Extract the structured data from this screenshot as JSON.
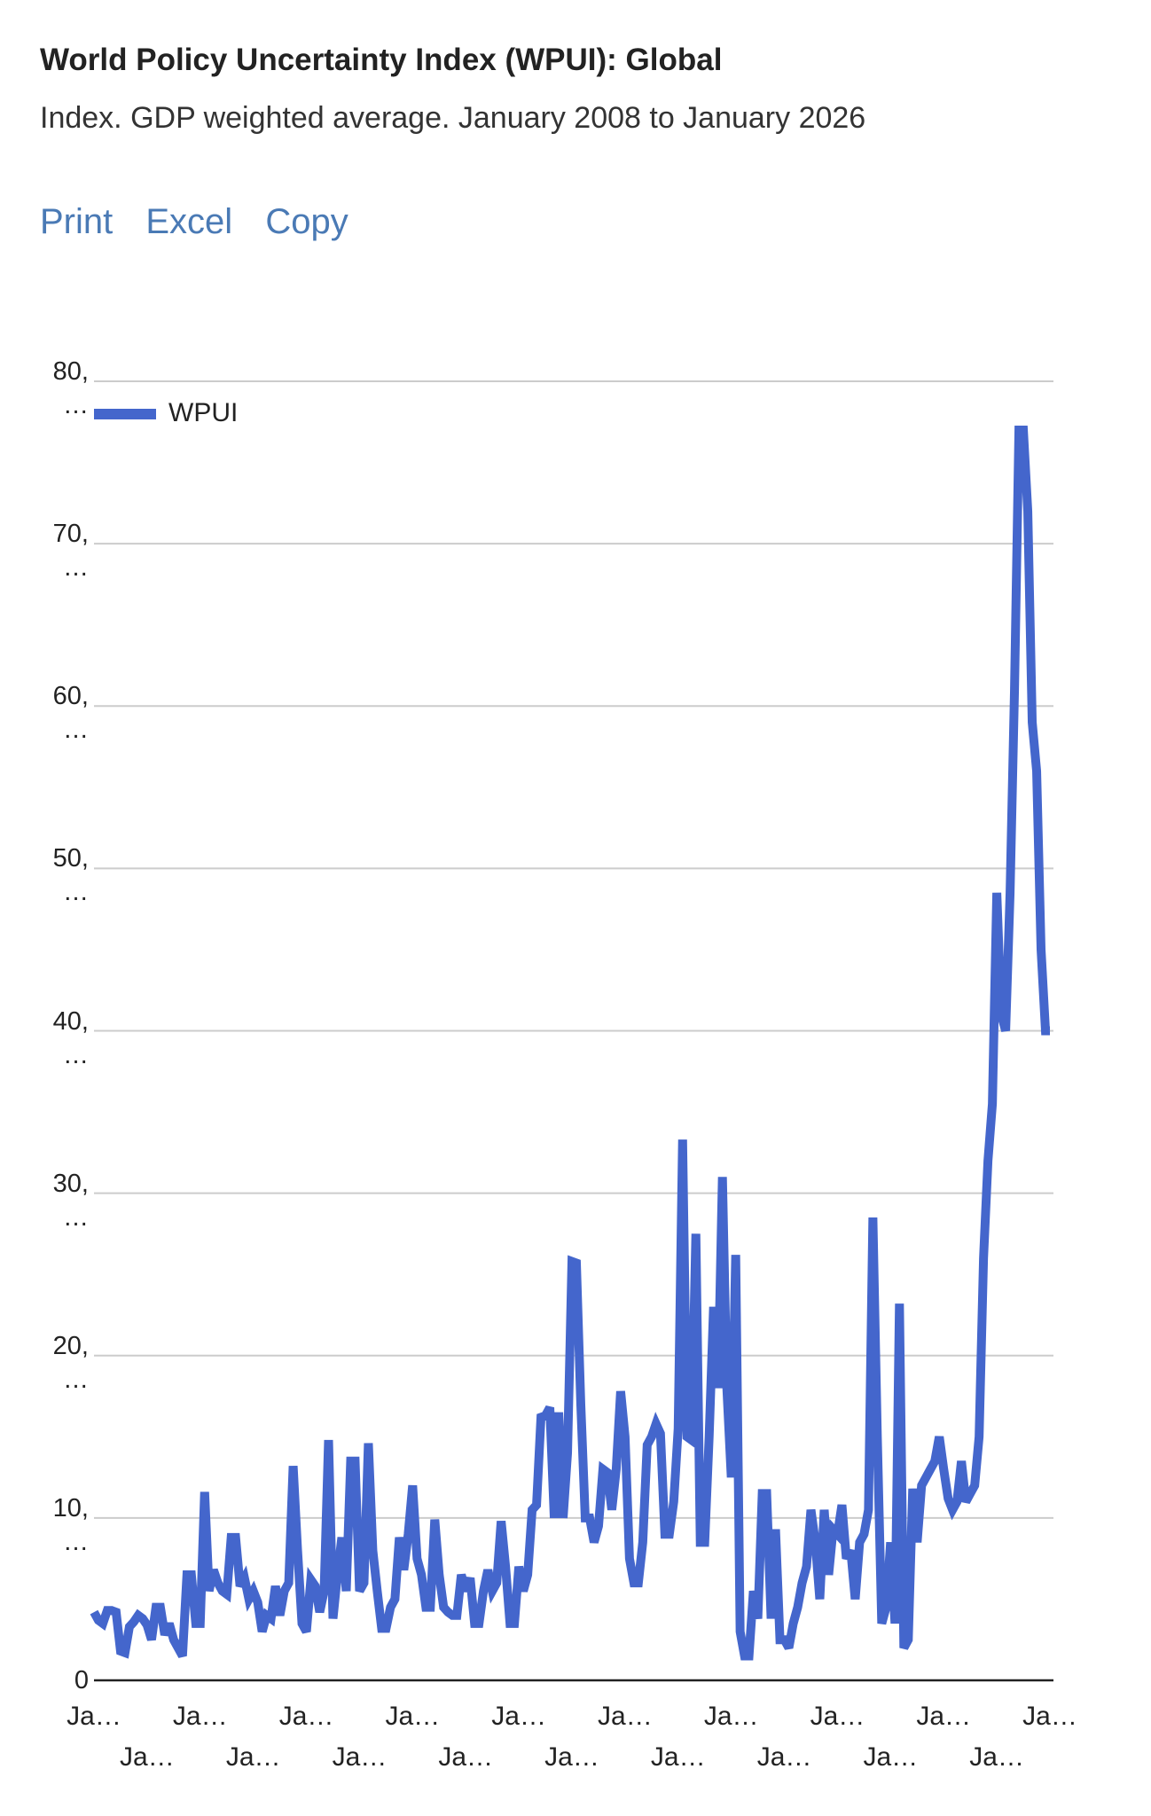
{
  "toolbar": [
    "Print",
    "Excel",
    "Copy"
  ],
  "chart_data": {
    "type": "line",
    "title": "World Policy Uncertainty Index (WPUI): Global",
    "subtitle": "Index. GDP weighted average. January 2008 to January 2026",
    "categories": [
      "Ja…",
      null,
      null,
      null,
      null,
      null,
      null,
      null,
      null,
      null,
      null,
      null,
      "Ja…",
      null,
      null,
      null,
      null,
      null,
      null,
      null,
      null,
      null,
      null,
      null,
      "Ja…",
      null,
      null,
      null,
      null,
      null,
      null,
      null,
      null,
      null,
      null,
      null,
      "Ja…",
      null,
      null,
      null,
      null,
      null,
      null,
      null,
      null,
      null,
      null,
      null,
      "Ja…",
      null,
      null,
      null,
      null,
      null,
      null,
      null,
      null,
      null,
      null,
      null,
      "Ja…",
      null,
      null,
      null,
      null,
      null,
      null,
      null,
      null,
      null,
      null,
      null,
      "Ja…",
      null,
      null,
      null,
      null,
      null,
      null,
      null,
      null,
      null,
      null,
      null,
      "Ja…",
      null,
      null,
      null,
      null,
      null,
      null,
      null,
      null,
      null,
      null,
      null,
      "Ja…",
      null,
      null,
      null,
      null,
      null,
      null,
      null,
      null,
      null,
      null,
      null,
      "Ja…",
      null,
      null,
      null,
      null,
      null,
      null,
      null,
      null,
      null,
      null,
      null,
      "Ja…",
      null,
      null,
      null,
      null,
      null,
      null,
      null,
      null,
      null,
      null,
      null,
      "Ja…",
      null,
      null,
      null,
      null,
      null,
      null,
      null,
      null,
      null,
      null,
      null,
      "Ja…",
      null,
      null,
      null,
      null,
      null,
      null,
      null,
      null,
      null,
      null,
      null,
      "Ja…",
      null,
      null,
      null,
      null,
      null,
      null,
      null,
      null,
      null,
      null,
      null,
      "Ja…",
      null,
      null,
      null,
      null,
      null,
      null,
      null,
      null,
      null,
      null,
      null,
      "Ja…",
      null,
      null,
      null,
      null,
      null,
      null,
      null,
      null,
      null,
      null,
      null,
      "Ja…",
      null,
      null,
      null,
      null,
      null,
      null,
      null,
      null,
      null,
      null,
      null,
      "Ja…",
      null,
      null,
      null,
      null,
      null,
      null,
      null,
      null,
      null,
      null,
      null,
      "Ja…"
    ],
    "series": [
      {
        "name": "WPUI",
        "color": "#4466cc",
        "values": [
          4.2,
          3.7,
          3.5,
          4.3,
          4.3,
          4.2,
          1.8,
          1.7,
          3.3,
          3.6,
          4.0,
          3.8,
          3.4,
          2.5,
          4.5,
          4.5,
          2.8,
          3.5,
          2.5,
          2.0,
          1.5,
          6.5,
          6.5,
          3.5,
          3.5,
          11.6,
          5.5,
          6.8,
          6.0,
          5.5,
          5.3,
          8.8,
          8.8,
          5.8,
          6.3,
          5.0,
          5.5,
          4.8,
          3.0,
          4.0,
          3.8,
          5.8,
          4.0,
          5.5,
          6.0,
          13.2,
          8.0,
          3.5,
          3.0,
          6.2,
          5.8,
          4.2,
          5.5,
          14.8,
          3.8,
          6.5,
          8.8,
          5.5,
          13.5,
          13.5,
          5.5,
          6.0,
          14.6,
          8.0,
          5.5,
          3.2,
          3.2,
          4.5,
          5.0,
          8.8,
          6.8,
          9.0,
          12.0,
          7.5,
          6.5,
          4.5,
          4.5,
          9.9,
          6.5,
          4.5,
          4.2,
          4.0,
          4.0,
          6.5,
          5.5,
          6.3,
          3.5,
          3.5,
          5.5,
          6.8,
          5.5,
          6.0,
          9.8,
          7.0,
          3.5,
          3.5,
          7.0,
          5.5,
          6.5,
          10.5,
          10.8,
          16.2,
          16.3,
          16.8,
          10.0,
          16.5,
          10.0,
          14.0,
          25.8,
          25.7,
          17.0,
          10.0,
          10.0,
          8.5,
          9.5,
          13.0,
          12.8,
          10.5,
          13.0,
          17.8,
          15.0,
          7.5,
          6.0,
          6.0,
          8.5,
          14.5,
          15.0,
          15.8,
          15.2,
          9.0,
          9.0,
          11.0,
          15.5,
          33.3,
          15.0,
          14.8,
          27.5,
          8.5,
          8.5,
          15.0,
          23.0,
          18.0,
          31.0,
          18.0,
          12.5,
          26.2,
          3.0,
          1.5,
          1.5,
          5.5,
          3.8,
          11.5,
          11.5,
          3.8,
          9.3,
          2.5,
          2.5,
          2.0,
          3.5,
          4.5,
          6.0,
          7.0,
          10.5,
          8.5,
          5.0,
          10.5,
          6.5,
          9.3,
          9.0,
          10.8,
          7.5,
          8.0,
          5.0,
          8.5,
          9.0,
          10.5,
          28.5,
          15.0,
          3.5,
          4.5,
          8.5,
          3.5,
          23.2,
          2.0,
          2.5,
          11.8,
          8.5,
          12.0,
          12.5,
          13.0,
          13.5,
          15.0,
          13.0,
          11.2,
          10.5,
          11.0,
          13.5,
          11.0,
          11.5,
          12.0,
          15.0,
          26.0,
          32.0,
          35.5,
          48.5,
          41.0,
          40.0,
          48.5,
          61.0,
          77.0,
          77.0,
          72.0,
          59.0,
          56.0,
          45.0,
          40.0,
          40.0
        ]
      }
    ],
    "ylim": [
      0,
      80
    ],
    "yticks": [
      0,
      {
        "value": 10,
        "label": "10, …"
      },
      {
        "value": 20,
        "label": "20, …"
      },
      {
        "value": 30,
        "label": "30, …"
      },
      {
        "value": 40,
        "label": "40, …"
      },
      {
        "value": 50,
        "label": "50, …"
      },
      {
        "value": 60,
        "label": "60, …"
      },
      {
        "value": 70,
        "label": "70, …"
      },
      {
        "value": 80,
        "label": "80, …"
      }
    ],
    "grid": true,
    "legend": "top-left"
  }
}
